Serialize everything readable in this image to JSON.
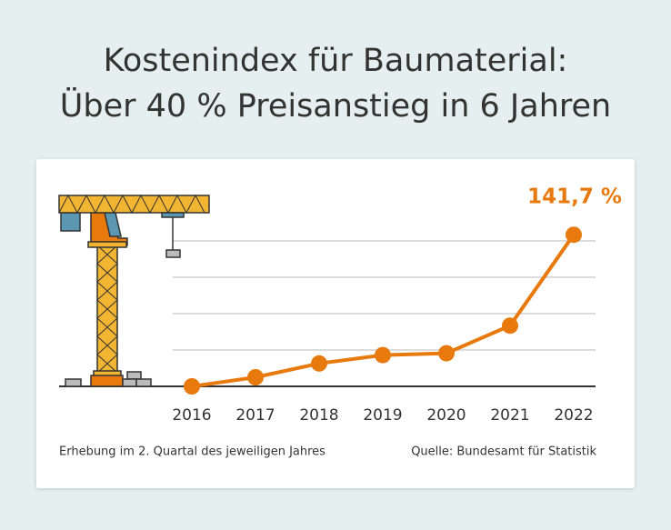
{
  "chart_data": {
    "type": "line",
    "title": [
      "Kostenindex für Baumaterial:",
      "Über 40 % Preisanstieg in 6 Jahren"
    ],
    "categories": [
      "2016",
      "2017",
      "2018",
      "2019",
      "2020",
      "2021",
      "2022"
    ],
    "values": [
      100,
      102.5,
      106.3,
      108.6,
      109.1,
      116.7,
      141.7
    ],
    "value_labels": [
      null,
      null,
      null,
      null,
      null,
      null,
      "141,7 %"
    ],
    "color": "#e8790c",
    "ylim": [
      100,
      140
    ],
    "yticks": [
      100,
      110,
      120,
      130,
      140
    ],
    "grid": true,
    "footnote": "Erhebung im 2. Quartal des jeweiligen Jahres",
    "source": "Quelle: Bundesamt für Statistik"
  }
}
